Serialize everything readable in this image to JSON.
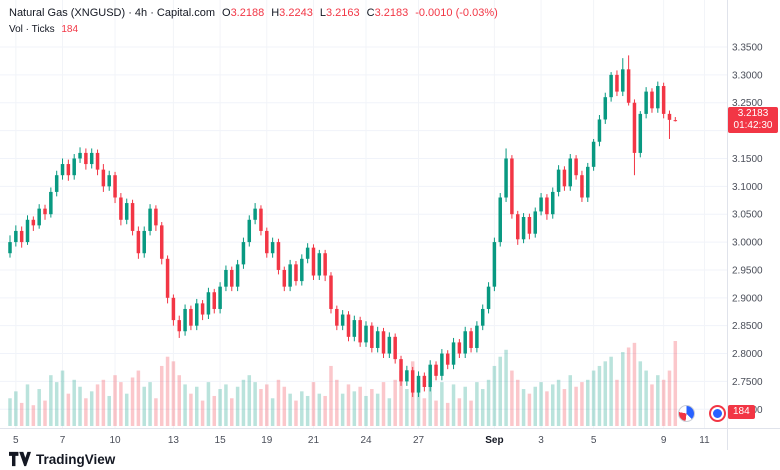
{
  "header": {
    "symbol_line": {
      "title": "Natural Gas (XNGUSD) · 4h · Capital.com",
      "o_label": "O",
      "o": "3.2188",
      "h_label": "H",
      "h": "3.2243",
      "l_label": "L",
      "l": "3.2163",
      "c_label": "C",
      "c": "3.2183",
      "change": "-0.0010 (-0.03%)"
    },
    "volume_line": {
      "label": "Vol · Ticks",
      "value": "184"
    }
  },
  "price_badge": {
    "price": "3.2183",
    "countdown": "01:42:30"
  },
  "volume_badge": "184",
  "footer": {
    "logo_text": "TradingView"
  },
  "colors": {
    "up": "#089981",
    "down": "#f23645",
    "volume_up": "rgba(8,153,129,0.28)",
    "volume_down": "rgba(242,54,69,0.28)",
    "badge": "#f23645",
    "grid": "#f0f3fa",
    "axis_text": "#4a4e59"
  },
  "chart_data": {
    "type": "candlestick",
    "symbol": "XNGUSD",
    "title": "Natural Gas (XNGUSD)",
    "interval": "4h",
    "provider": "Capital.com",
    "last_close": 3.2183,
    "change": -0.001,
    "change_pct": -0.03,
    "y_min": 2.67,
    "y_max": 3.42,
    "y_ticks": [
      2.7,
      2.75,
      2.8,
      2.85,
      2.9,
      2.95,
      3.0,
      3.05,
      3.1,
      3.15,
      3.2,
      3.25,
      3.3,
      3.35
    ],
    "total_slots": 122,
    "x_labels": [
      {
        "label": "5",
        "i": 1
      },
      {
        "label": "7",
        "i": 9
      },
      {
        "label": "10",
        "i": 18
      },
      {
        "label": "13",
        "i": 28
      },
      {
        "label": "15",
        "i": 36
      },
      {
        "label": "19",
        "i": 44
      },
      {
        "label": "21",
        "i": 52
      },
      {
        "label": "24",
        "i": 61
      },
      {
        "label": "27",
        "i": 70
      },
      {
        "label": "Sep",
        "i": 83,
        "major": true
      },
      {
        "label": "3",
        "i": 91
      },
      {
        "label": "5",
        "i": 100
      },
      {
        "label": "9",
        "i": 112
      },
      {
        "label": "11",
        "i": 119
      }
    ],
    "candles_format": [
      "open",
      "high",
      "low",
      "close",
      "volume"
    ],
    "candles": [
      [
        2.98,
        3.012,
        2.972,
        3.0,
        60
      ],
      [
        3.0,
        3.03,
        2.992,
        3.02,
        75
      ],
      [
        3.02,
        3.028,
        2.99,
        3.0,
        50
      ],
      [
        3.0,
        3.048,
        2.995,
        3.04,
        90
      ],
      [
        3.04,
        3.046,
        3.02,
        3.03,
        45
      ],
      [
        3.03,
        3.068,
        3.024,
        3.06,
        80
      ],
      [
        3.06,
        3.067,
        3.04,
        3.05,
        55
      ],
      [
        3.05,
        3.098,
        3.044,
        3.09,
        110
      ],
      [
        3.09,
        3.128,
        3.082,
        3.12,
        95
      ],
      [
        3.12,
        3.15,
        3.112,
        3.14,
        120
      ],
      [
        3.14,
        3.148,
        3.11,
        3.12,
        70
      ],
      [
        3.12,
        3.158,
        3.112,
        3.15,
        100
      ],
      [
        3.15,
        3.17,
        3.142,
        3.16,
        85
      ],
      [
        3.16,
        3.168,
        3.13,
        3.14,
        60
      ],
      [
        3.14,
        3.168,
        3.132,
        3.16,
        75
      ],
      [
        3.16,
        3.166,
        3.12,
        3.13,
        90
      ],
      [
        3.13,
        3.14,
        3.09,
        3.1,
        100
      ],
      [
        3.1,
        3.128,
        3.092,
        3.12,
        65
      ],
      [
        3.12,
        3.126,
        3.07,
        3.08,
        110
      ],
      [
        3.08,
        3.088,
        3.03,
        3.04,
        95
      ],
      [
        3.04,
        3.078,
        3.032,
        3.07,
        70
      ],
      [
        3.07,
        3.076,
        3.012,
        3.02,
        105
      ],
      [
        3.02,
        3.028,
        2.97,
        2.98,
        120
      ],
      [
        2.98,
        3.028,
        2.972,
        3.02,
        85
      ],
      [
        3.02,
        3.068,
        3.012,
        3.06,
        95
      ],
      [
        3.06,
        3.066,
        3.02,
        3.03,
        60
      ],
      [
        3.03,
        3.036,
        2.96,
        2.97,
        130
      ],
      [
        2.97,
        2.976,
        2.89,
        2.9,
        150
      ],
      [
        2.9,
        2.906,
        2.85,
        2.86,
        140
      ],
      [
        2.86,
        2.868,
        2.828,
        2.84,
        110
      ],
      [
        2.84,
        2.888,
        2.832,
        2.88,
        90
      ],
      [
        2.88,
        2.886,
        2.842,
        2.85,
        70
      ],
      [
        2.85,
        2.898,
        2.842,
        2.89,
        85
      ],
      [
        2.89,
        2.896,
        2.86,
        2.87,
        55
      ],
      [
        2.87,
        2.918,
        2.862,
        2.91,
        95
      ],
      [
        2.91,
        2.916,
        2.872,
        2.88,
        65
      ],
      [
        2.88,
        2.928,
        2.872,
        2.92,
        80
      ],
      [
        2.92,
        2.958,
        2.912,
        2.95,
        90
      ],
      [
        2.95,
        2.956,
        2.912,
        2.92,
        60
      ],
      [
        2.92,
        2.968,
        2.912,
        2.96,
        85
      ],
      [
        2.96,
        3.008,
        2.952,
        3.0,
        100
      ],
      [
        3.0,
        3.048,
        2.992,
        3.04,
        110
      ],
      [
        3.04,
        3.07,
        3.032,
        3.06,
        95
      ],
      [
        3.06,
        3.066,
        3.012,
        3.02,
        80
      ],
      [
        3.02,
        3.026,
        2.972,
        2.98,
        90
      ],
      [
        2.98,
        3.008,
        2.972,
        3.0,
        60
      ],
      [
        3.0,
        3.006,
        2.942,
        2.95,
        100
      ],
      [
        2.95,
        2.956,
        2.912,
        2.92,
        85
      ],
      [
        2.92,
        2.968,
        2.912,
        2.96,
        70
      ],
      [
        2.96,
        2.966,
        2.922,
        2.93,
        55
      ],
      [
        2.93,
        2.978,
        2.922,
        2.97,
        75
      ],
      [
        2.97,
        2.998,
        2.962,
        2.99,
        65
      ],
      [
        2.99,
        2.996,
        2.932,
        2.94,
        95
      ],
      [
        2.94,
        2.986,
        2.932,
        2.98,
        70
      ],
      [
        2.98,
        2.986,
        2.93,
        2.94,
        65
      ],
      [
        2.94,
        2.946,
        2.872,
        2.88,
        130
      ],
      [
        2.88,
        2.886,
        2.842,
        2.85,
        100
      ],
      [
        2.85,
        2.878,
        2.842,
        2.87,
        70
      ],
      [
        2.87,
        2.876,
        2.822,
        2.83,
        90
      ],
      [
        2.83,
        2.868,
        2.822,
        2.86,
        75
      ],
      [
        2.86,
        2.866,
        2.812,
        2.82,
        85
      ],
      [
        2.82,
        2.858,
        2.812,
        2.85,
        65
      ],
      [
        2.85,
        2.856,
        2.802,
        2.81,
        80
      ],
      [
        2.81,
        2.848,
        2.802,
        2.84,
        70
      ],
      [
        2.84,
        2.846,
        2.792,
        2.8,
        95
      ],
      [
        2.8,
        2.838,
        2.792,
        2.83,
        60
      ],
      [
        2.83,
        2.836,
        2.782,
        2.79,
        100
      ],
      [
        2.79,
        2.796,
        2.742,
        2.75,
        120
      ],
      [
        2.75,
        2.778,
        2.742,
        2.77,
        80
      ],
      [
        2.77,
        2.776,
        2.722,
        2.73,
        140
      ],
      [
        2.73,
        2.768,
        2.722,
        2.76,
        90
      ],
      [
        2.76,
        2.766,
        2.732,
        2.74,
        60
      ],
      [
        2.74,
        2.788,
        2.732,
        2.78,
        85
      ],
      [
        2.78,
        2.786,
        2.752,
        2.76,
        55
      ],
      [
        2.76,
        2.808,
        2.752,
        2.8,
        95
      ],
      [
        2.8,
        2.806,
        2.772,
        2.78,
        50
      ],
      [
        2.78,
        2.828,
        2.772,
        2.82,
        90
      ],
      [
        2.82,
        2.826,
        2.792,
        2.8,
        60
      ],
      [
        2.8,
        2.848,
        2.792,
        2.84,
        85
      ],
      [
        2.84,
        2.846,
        2.802,
        2.81,
        55
      ],
      [
        2.81,
        2.858,
        2.802,
        2.85,
        95
      ],
      [
        2.85,
        2.888,
        2.842,
        2.88,
        80
      ],
      [
        2.88,
        2.928,
        2.872,
        2.92,
        100
      ],
      [
        2.92,
        3.008,
        2.912,
        3.0,
        130
      ],
      [
        3.0,
        3.088,
        2.992,
        3.08,
        150
      ],
      [
        3.08,
        3.168,
        3.072,
        3.15,
        165
      ],
      [
        3.15,
        3.156,
        3.042,
        3.05,
        120
      ],
      [
        3.05,
        3.056,
        2.995,
        3.005,
        100
      ],
      [
        3.005,
        3.052,
        2.998,
        3.045,
        80
      ],
      [
        3.045,
        3.051,
        3.005,
        3.015,
        70
      ],
      [
        3.015,
        3.062,
        3.008,
        3.055,
        85
      ],
      [
        3.055,
        3.088,
        3.048,
        3.08,
        95
      ],
      [
        3.08,
        3.086,
        3.04,
        3.05,
        75
      ],
      [
        3.05,
        3.098,
        3.042,
        3.09,
        90
      ],
      [
        3.09,
        3.138,
        3.082,
        3.13,
        100
      ],
      [
        3.13,
        3.136,
        3.092,
        3.1,
        80
      ],
      [
        3.1,
        3.158,
        3.092,
        3.15,
        110
      ],
      [
        3.15,
        3.156,
        3.112,
        3.12,
        85
      ],
      [
        3.12,
        3.128,
        3.072,
        3.08,
        95
      ],
      [
        3.08,
        3.142,
        3.072,
        3.135,
        100
      ],
      [
        3.135,
        3.185,
        3.128,
        3.18,
        120
      ],
      [
        3.18,
        3.228,
        3.172,
        3.22,
        130
      ],
      [
        3.22,
        3.268,
        3.212,
        3.26,
        140
      ],
      [
        3.26,
        3.305,
        3.252,
        3.3,
        150
      ],
      [
        3.3,
        3.308,
        3.262,
        3.27,
        100
      ],
      [
        3.27,
        3.33,
        3.262,
        3.31,
        160
      ],
      [
        3.31,
        3.335,
        3.245,
        3.25,
        170
      ],
      [
        3.25,
        3.256,
        3.12,
        3.16,
        180
      ],
      [
        3.16,
        3.235,
        3.152,
        3.23,
        140
      ],
      [
        3.23,
        3.278,
        3.222,
        3.27,
        120
      ],
      [
        3.27,
        3.276,
        3.232,
        3.24,
        90
      ],
      [
        3.24,
        3.288,
        3.232,
        3.28,
        110
      ],
      [
        3.28,
        3.286,
        3.222,
        3.23,
        100
      ],
      [
        3.23,
        3.236,
        3.185,
        3.2193,
        120
      ],
      [
        3.2188,
        3.2243,
        3.2163,
        3.2183,
        184
      ]
    ]
  }
}
